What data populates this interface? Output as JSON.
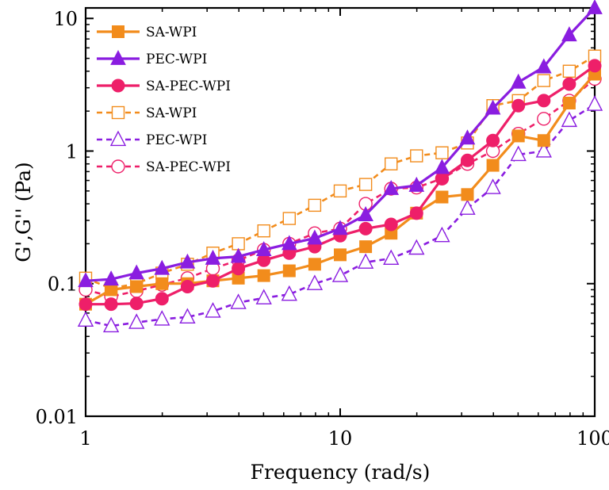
{
  "chart_data": {
    "type": "line",
    "title": "",
    "xlabel": "Frequency (rad/s)",
    "ylabel": "G',G'' (Pa)",
    "xscale": "log",
    "yscale": "log",
    "xlim": [
      1,
      100
    ],
    "ylim": [
      0.01,
      12
    ],
    "xticks": [
      1,
      10,
      100
    ],
    "xtick_labels": [
      "1",
      "10",
      "100"
    ],
    "yticks": [
      0.01,
      0.1,
      1,
      10
    ],
    "ytick_labels": [
      "0.01",
      "0.1",
      "1",
      "10"
    ],
    "grid": false,
    "legend_position": "top-left",
    "x": [
      1,
      1.259,
      1.585,
      1.995,
      2.512,
      3.162,
      3.981,
      5.012,
      6.31,
      7.943,
      10,
      12.59,
      15.85,
      19.95,
      25.12,
      31.62,
      39.81,
      50.12,
      63.1,
      79.43,
      100
    ],
    "series": [
      {
        "name": "SA-WPI",
        "kind": "G'",
        "color": "#f28c1c",
        "marker": "square",
        "filled": true,
        "dash": "solid",
        "values": [
          0.07,
          0.09,
          0.095,
          0.1,
          0.1,
          0.105,
          0.11,
          0.115,
          0.125,
          0.14,
          0.165,
          0.19,
          0.24,
          0.34,
          0.45,
          0.47,
          0.78,
          1.3,
          1.2,
          2.3,
          3.8
        ]
      },
      {
        "name": "PEC-WPI",
        "kind": "G'",
        "color": "#8a1de0",
        "marker": "triangle",
        "filled": true,
        "dash": "solid",
        "values": [
          0.105,
          0.108,
          0.12,
          0.13,
          0.145,
          0.155,
          0.16,
          0.18,
          0.2,
          0.22,
          0.26,
          0.33,
          0.52,
          0.55,
          0.75,
          1.25,
          2.1,
          3.3,
          4.3,
          7.5,
          12
        ]
      },
      {
        "name": "SA-PEC-WPI",
        "kind": "G'",
        "color": "#ee1f69",
        "marker": "circle",
        "filled": true,
        "dash": "solid",
        "values": [
          0.07,
          0.07,
          0.071,
          0.077,
          0.095,
          0.105,
          0.13,
          0.15,
          0.17,
          0.19,
          0.23,
          0.26,
          0.28,
          0.34,
          0.62,
          0.85,
          1.2,
          2.2,
          2.4,
          3.2,
          4.4
        ]
      },
      {
        "name": "SA-WPI",
        "kind": "G''",
        "color": "#f28c1c",
        "marker": "square",
        "filled": false,
        "dash": "dashed",
        "values": [
          0.11,
          0.092,
          0.1,
          0.12,
          0.14,
          0.17,
          0.2,
          0.25,
          0.31,
          0.39,
          0.5,
          0.56,
          0.8,
          0.92,
          0.97,
          1.15,
          2.2,
          2.4,
          3.4,
          4.0,
          5.2
        ]
      },
      {
        "name": "PEC-WPI",
        "kind": "G''",
        "color": "#8a1de0",
        "marker": "triangle",
        "filled": false,
        "dash": "dashed",
        "values": [
          0.053,
          0.048,
          0.051,
          0.054,
          0.056,
          0.062,
          0.072,
          0.078,
          0.083,
          0.1,
          0.115,
          0.145,
          0.155,
          0.185,
          0.23,
          0.37,
          0.53,
          0.94,
          1.0,
          1.7,
          2.25
        ]
      },
      {
        "name": "SA-PEC-WPI",
        "kind": "G''",
        "color": "#ee1f69",
        "marker": "circle",
        "filled": false,
        "dash": "dashed",
        "values": [
          0.09,
          0.08,
          0.088,
          0.098,
          0.11,
          0.13,
          0.15,
          0.18,
          0.2,
          0.24,
          0.26,
          0.4,
          0.52,
          0.53,
          0.62,
          0.8,
          1.0,
          1.35,
          1.75,
          2.4,
          3.5
        ]
      }
    ]
  }
}
